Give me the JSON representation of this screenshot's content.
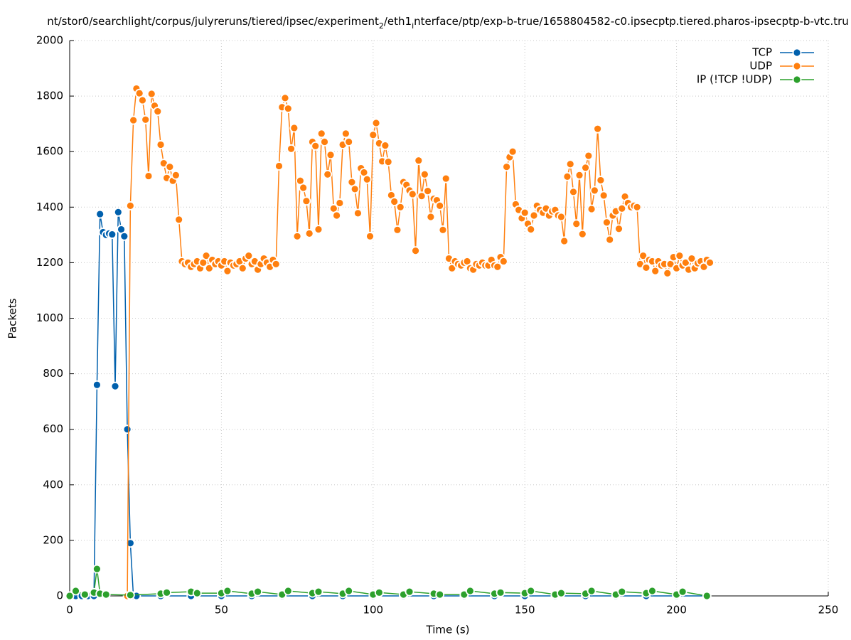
{
  "chart_data": {
    "type": "line",
    "title_segments": [
      {
        "text": "nt/stor0/searchlight/corpus/julyreruns/tiered/ipsec/experiment",
        "subscript": false
      },
      {
        "text": "2",
        "subscript": true
      },
      {
        "text": "/eth1",
        "subscript": false
      },
      {
        "text": "i",
        "subscript": true
      },
      {
        "text": "nterface/ptp/exp-b-true/1658804582-c0.ipsecptp.tiered.pharos-ipsecptp-b-vtc.tru",
        "subscript": false
      }
    ],
    "x_label": "Time (s)",
    "y_label": "Packets",
    "xlim": [
      0,
      250
    ],
    "xticks": [
      0,
      50,
      100,
      150,
      200,
      250
    ],
    "ylim": [
      0,
      2000
    ],
    "yticks": [
      0,
      200,
      400,
      600,
      800,
      1000,
      1200,
      1400,
      1600,
      1800,
      2000
    ],
    "grid": true,
    "legend": "top-right",
    "series": [
      {
        "name": "TCP",
        "color": "#0060ad",
        "x": [
          0,
          2,
          4,
          6,
          8,
          9,
          10,
          11,
          12,
          13,
          14,
          15,
          16,
          17,
          18,
          19,
          20,
          21,
          22,
          30,
          40,
          50,
          60,
          70,
          80,
          90,
          100,
          110,
          120,
          130,
          140,
          150,
          160,
          170,
          180,
          190,
          200,
          210
        ],
        "values": [
          0,
          0,
          0,
          0,
          0,
          760,
          1375,
          1310,
          1300,
          1305,
          1302,
          755,
          1382,
          1320,
          1295,
          600,
          190,
          0,
          0,
          0,
          0,
          0,
          0,
          0,
          0,
          0,
          0,
          0,
          0,
          0,
          0,
          0,
          0,
          0,
          0,
          0,
          0,
          0
        ]
      },
      {
        "name": "UDP",
        "color": "#ff7f0e",
        "x": [
          19,
          20,
          21,
          22,
          23,
          24,
          25,
          26,
          27,
          28,
          29,
          30,
          31,
          32,
          33,
          34,
          35,
          36,
          37,
          38,
          39,
          40,
          41,
          42,
          43,
          44,
          45,
          46,
          47,
          48,
          49,
          50,
          51,
          52,
          53,
          54,
          55,
          56,
          57,
          58,
          59,
          60,
          61,
          62,
          63,
          64,
          65,
          66,
          67,
          68,
          69,
          70,
          71,
          72,
          73,
          74,
          75,
          76,
          77,
          78,
          79,
          80,
          81,
          82,
          83,
          84,
          85,
          86,
          87,
          88,
          89,
          90,
          91,
          92,
          93,
          94,
          95,
          96,
          97,
          98,
          99,
          100,
          101,
          102,
          103,
          104,
          105,
          106,
          107,
          108,
          109,
          110,
          111,
          112,
          113,
          114,
          115,
          116,
          117,
          118,
          119,
          120,
          121,
          122,
          123,
          124,
          125,
          126,
          127,
          128,
          129,
          130,
          131,
          132,
          133,
          134,
          135,
          136,
          137,
          138,
          139,
          140,
          141,
          142,
          143,
          144,
          145,
          146,
          147,
          148,
          149,
          150,
          151,
          152,
          153,
          154,
          155,
          156,
          157,
          158,
          159,
          160,
          161,
          162,
          163,
          164,
          165,
          166,
          167,
          168,
          169,
          170,
          171,
          172,
          173,
          174,
          175,
          176,
          177,
          178,
          179,
          180,
          181,
          182,
          183,
          184,
          185,
          186,
          187,
          188,
          189,
          190,
          191,
          192,
          193,
          194,
          195,
          196,
          197,
          198,
          199,
          200,
          201,
          202,
          203,
          204,
          205,
          206,
          207,
          208,
          209,
          210,
          211
        ],
        "values": [
          0,
          1405,
          1713,
          1827,
          1810,
          1785,
          1715,
          1512,
          1808,
          1765,
          1745,
          1625,
          1558,
          1505,
          1545,
          1495,
          1515,
          1355,
          1205,
          1195,
          1200,
          1185,
          1195,
          1205,
          1180,
          1200,
          1225,
          1180,
          1210,
          1195,
          1205,
          1190,
          1205,
          1170,
          1200,
          1190,
          1195,
          1205,
          1180,
          1215,
          1225,
          1195,
          1205,
          1175,
          1195,
          1215,
          1200,
          1185,
          1210,
          1195,
          1548,
          1760,
          1793,
          1755,
          1610,
          1685,
          1295,
          1495,
          1470,
          1422,
          1305,
          1635,
          1620,
          1320,
          1665,
          1635,
          1518,
          1588,
          1395,
          1370,
          1415,
          1625,
          1665,
          1635,
          1490,
          1465,
          1378,
          1540,
          1525,
          1500,
          1295,
          1660,
          1703,
          1630,
          1565,
          1622,
          1563,
          1443,
          1420,
          1318,
          1400,
          1490,
          1480,
          1460,
          1447,
          1243,
          1568,
          1440,
          1518,
          1458,
          1365,
          1430,
          1425,
          1405,
          1318,
          1503,
          1215,
          1180,
          1205,
          1195,
          1190,
          1200,
          1205,
          1180,
          1175,
          1195,
          1190,
          1200,
          1190,
          1190,
          1210,
          1190,
          1185,
          1220,
          1205,
          1545,
          1580,
          1600,
          1410,
          1390,
          1360,
          1380,
          1340,
          1320,
          1370,
          1405,
          1390,
          1380,
          1395,
          1370,
          1385,
          1390,
          1370,
          1365,
          1278,
          1510,
          1555,
          1455,
          1340,
          1515,
          1303,
          1542,
          1585,
          1393,
          1460,
          1682,
          1497,
          1442,
          1345,
          1283,
          1370,
          1385,
          1322,
          1395,
          1438,
          1415,
          1400,
          1405,
          1400,
          1195,
          1225,
          1182,
          1210,
          1205,
          1170,
          1205,
          1190,
          1195,
          1162,
          1195,
          1220,
          1180,
          1225,
          1190,
          1200,
          1175,
          1215,
          1180,
          1198,
          1205,
          1185,
          1210,
          1200
        ]
      },
      {
        "name": "IP (!TCP  !UDP)",
        "color": "#2ca02c",
        "x": [
          0,
          2,
          5,
          8,
          9,
          10,
          12,
          20,
          30,
          32,
          40,
          42,
          50,
          52,
          60,
          62,
          70,
          72,
          80,
          82,
          90,
          92,
          100,
          102,
          110,
          112,
          120,
          122,
          130,
          132,
          140,
          142,
          150,
          152,
          160,
          162,
          170,
          172,
          180,
          182,
          190,
          192,
          200,
          202,
          210
        ],
        "values": [
          0,
          18,
          5,
          12,
          97,
          8,
          5,
          3,
          8,
          12,
          15,
          10,
          10,
          18,
          8,
          15,
          5,
          18,
          10,
          15,
          8,
          18,
          5,
          12,
          5,
          15,
          8,
          5,
          5,
          18,
          8,
          12,
          10,
          18,
          5,
          10,
          8,
          18,
          5,
          15,
          10,
          18,
          5,
          15,
          0
        ]
      }
    ]
  }
}
